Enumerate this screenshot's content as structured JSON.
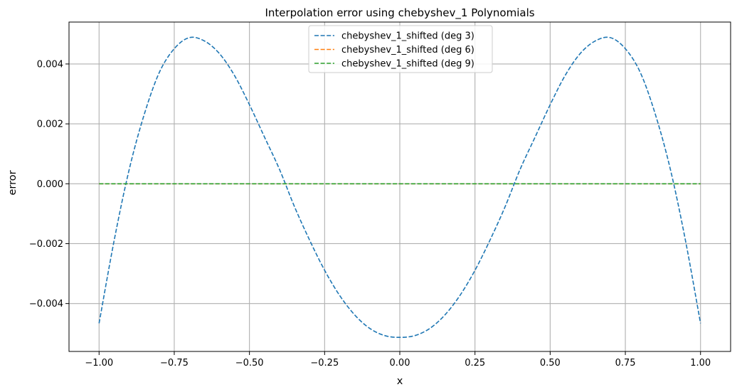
{
  "chart_data": {
    "type": "line",
    "title": "Interpolation error using chebyshev_1 Polynomials",
    "xlabel": "x",
    "ylabel": "error",
    "xlim": [
      -1.1,
      1.1
    ],
    "ylim": [
      -0.0056,
      0.0054
    ],
    "xticks": [
      -1.0,
      -0.75,
      -0.5,
      -0.25,
      0.0,
      0.25,
      0.5,
      0.75,
      1.0
    ],
    "xtick_labels": [
      "−1.00",
      "−0.75",
      "−0.50",
      "−0.25",
      "0.00",
      "0.25",
      "0.50",
      "0.75",
      "1.00"
    ],
    "yticks": [
      -0.004,
      -0.002,
      0.0,
      0.002,
      0.004
    ],
    "ytick_labels": [
      "−0.004",
      "−0.002",
      "0.000",
      "0.002",
      "0.004"
    ],
    "grid": true,
    "legend_position": "top-center",
    "series": [
      {
        "name": "chebyshev_1_shifted (deg 3)",
        "color": "#1f77b4",
        "style": "dashed",
        "x": [
          -1.0,
          -0.95,
          -0.9,
          -0.85,
          -0.8,
          -0.75,
          -0.7,
          -0.65,
          -0.6,
          -0.55,
          -0.5,
          -0.45,
          -0.4,
          -0.35,
          -0.3,
          -0.25,
          -0.2,
          -0.15,
          -0.1,
          -0.05,
          0.0,
          0.05,
          0.1,
          0.15,
          0.2,
          0.25,
          0.3,
          0.35,
          0.4,
          0.45,
          0.5,
          0.55,
          0.6,
          0.65,
          0.7,
          0.75,
          0.8,
          0.85,
          0.9,
          0.95,
          1.0
        ],
        "y": [
          -0.00466,
          -0.0019,
          0.00047,
          0.00231,
          0.00371,
          0.00451,
          0.00488,
          0.00477,
          0.00435,
          0.00362,
          0.00264,
          0.00156,
          0.00048,
          -0.00077,
          -0.00188,
          -0.00289,
          -0.00373,
          -0.00438,
          -0.00483,
          -0.00507,
          -0.00513,
          -0.00507,
          -0.00483,
          -0.00438,
          -0.00373,
          -0.00289,
          -0.00188,
          -0.00077,
          0.00048,
          0.00156,
          0.00264,
          0.00362,
          0.00435,
          0.00477,
          0.00488,
          0.00451,
          0.00371,
          0.00231,
          0.00047,
          -0.0019,
          -0.00466
        ]
      },
      {
        "name": "chebyshev_1_shifted (deg 6)",
        "color": "#ff7f0e",
        "style": "dashed",
        "x": [
          -1.0,
          -0.5,
          0.0,
          0.5,
          1.0
        ],
        "y": [
          0.0,
          0.0,
          0.0,
          0.0,
          0.0
        ]
      },
      {
        "name": "chebyshev_1_shifted (deg 9)",
        "color": "#2ca02c",
        "style": "dashed",
        "x": [
          -1.0,
          -0.5,
          0.0,
          0.5,
          1.0
        ],
        "y": [
          0.0,
          0.0,
          0.0,
          0.0,
          0.0
        ]
      }
    ]
  }
}
